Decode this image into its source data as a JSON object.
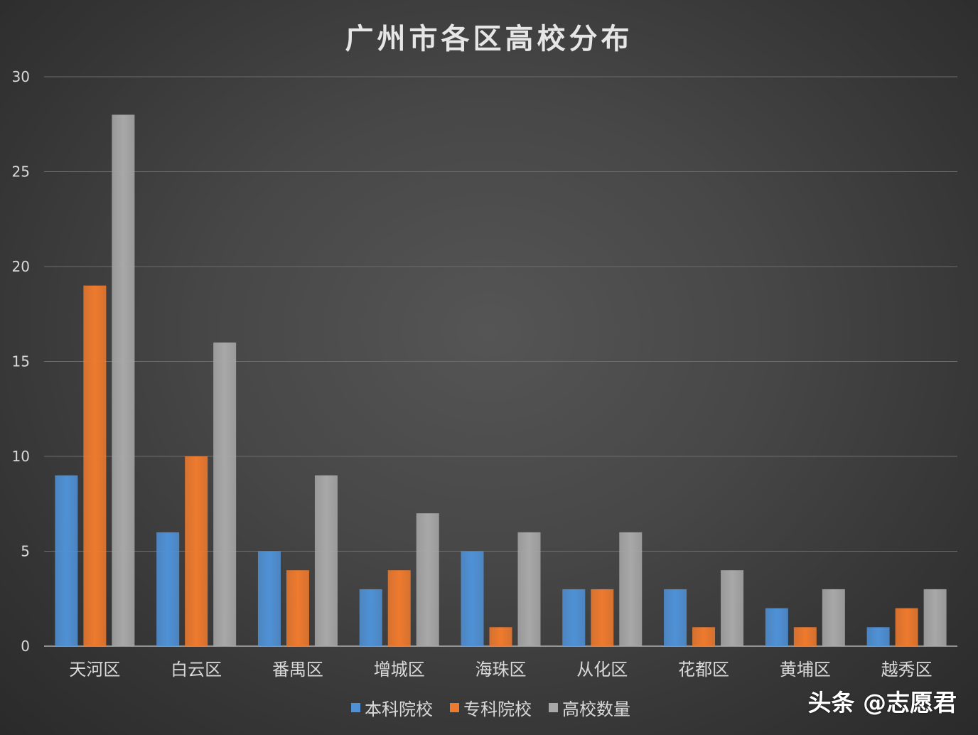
{
  "chart_data": {
    "type": "bar",
    "title": "广州市各区高校分布",
    "categories": [
      "天河区",
      "白云区",
      "番禺区",
      "增城区",
      "海珠区",
      "从化区",
      "花都区",
      "黄埔区",
      "越秀区"
    ],
    "series": [
      {
        "name": "本科院校",
        "color": "#4f91d6",
        "values": [
          9,
          6,
          5,
          3,
          5,
          3,
          3,
          2,
          1
        ]
      },
      {
        "name": "专科院校",
        "color": "#ee7a2e",
        "values": [
          19,
          10,
          4,
          4,
          1,
          3,
          1,
          1,
          2
        ]
      },
      {
        "name": "高校数量",
        "color": "#a8a8a8",
        "values": [
          28,
          16,
          9,
          7,
          6,
          6,
          4,
          3,
          3
        ]
      }
    ],
    "ylim": [
      0,
      30
    ],
    "yticks": [
      0,
      5,
      10,
      15,
      20,
      25,
      30
    ],
    "grid": true,
    "legend_position": "bottom"
  },
  "watermark": "头条 @志愿君"
}
